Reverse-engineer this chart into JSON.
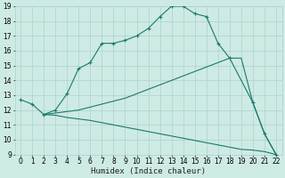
{
  "xlabel": "Humidex (Indice chaleur)",
  "bg_color": "#ceeae4",
  "grid_color": "#aad4cc",
  "line_color": "#1a7a6a",
  "xlim": [
    -0.5,
    22.5
  ],
  "ylim": [
    9,
    19
  ],
  "xticks": [
    0,
    1,
    2,
    3,
    4,
    5,
    6,
    7,
    8,
    9,
    10,
    11,
    12,
    13,
    14,
    15,
    16,
    17,
    18,
    19,
    20,
    21,
    22
  ],
  "yticks": [
    9,
    10,
    11,
    12,
    13,
    14,
    15,
    16,
    17,
    18,
    19
  ],
  "lines": [
    {
      "x": [
        0,
        1,
        2,
        3,
        4,
        5,
        6,
        7,
        8,
        9,
        10,
        11,
        12,
        13,
        14,
        15,
        16,
        17,
        18,
        20,
        21,
        22
      ],
      "y": [
        12.7,
        12.4,
        11.7,
        12.0,
        13.1,
        14.8,
        15.2,
        16.5,
        16.5,
        16.7,
        17.0,
        17.5,
        18.3,
        19.0,
        19.0,
        18.5,
        18.3,
        16.5,
        15.5,
        12.5,
        10.4,
        9.0
      ],
      "marker": "+"
    },
    {
      "x": [
        2,
        3,
        4,
        5,
        6,
        7,
        8,
        9,
        10,
        11,
        12,
        13,
        14,
        15,
        16,
        17,
        18,
        19,
        20,
        21,
        22
      ],
      "y": [
        11.7,
        11.8,
        11.9,
        12.0,
        12.2,
        12.4,
        12.6,
        12.8,
        13.1,
        13.4,
        13.7,
        14.0,
        14.3,
        14.6,
        14.9,
        15.2,
        15.5,
        15.5,
        12.5,
        10.4,
        9.0
      ],
      "marker": null
    },
    {
      "x": [
        2,
        3,
        4,
        5,
        6,
        7,
        8,
        9,
        10,
        11,
        12,
        13,
        14,
        15,
        16,
        17,
        18,
        19,
        20,
        21,
        22
      ],
      "y": [
        11.7,
        11.65,
        11.5,
        11.4,
        11.3,
        11.15,
        11.0,
        10.85,
        10.7,
        10.55,
        10.4,
        10.25,
        10.1,
        9.95,
        9.8,
        9.65,
        9.5,
        9.35,
        9.3,
        9.2,
        9.0
      ],
      "marker": null
    }
  ]
}
